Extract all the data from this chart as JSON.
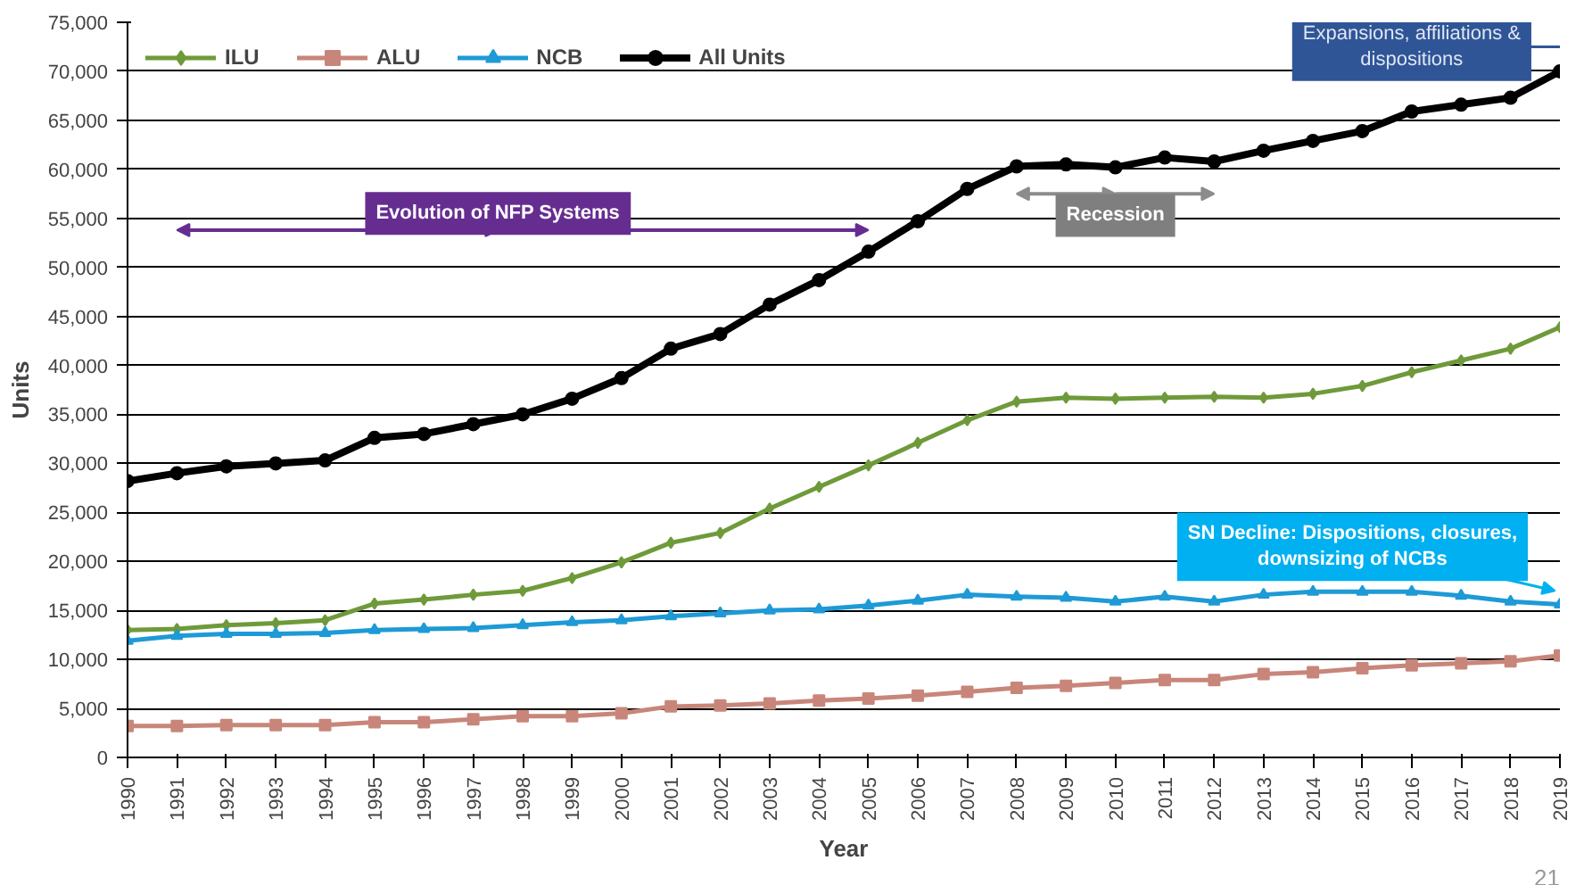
{
  "chart_data": {
    "type": "line",
    "xlabel": "Year",
    "ylabel": "Units",
    "x": [
      1990,
      1991,
      1992,
      1993,
      1994,
      1995,
      1996,
      1997,
      1998,
      1999,
      2000,
      2001,
      2002,
      2003,
      2004,
      2005,
      2006,
      2007,
      2008,
      2009,
      2010,
      2011,
      2012,
      2013,
      2014,
      2015,
      2016,
      2017,
      2018,
      2019
    ],
    "xlim": [
      1990,
      2019
    ],
    "xticks": [
      1990,
      1991,
      1992,
      1993,
      1994,
      1995,
      1996,
      1997,
      1998,
      1999,
      2000,
      2001,
      2002,
      2003,
      2004,
      2005,
      2006,
      2007,
      2008,
      2009,
      2010,
      2011,
      2012,
      2013,
      2014,
      2015,
      2016,
      2017,
      2018,
      2019
    ],
    "ylim": [
      0,
      75000
    ],
    "yticks": [
      {
        "value": 0,
        "label": "0"
      },
      {
        "value": 5000,
        "label": "5,000"
      },
      {
        "value": 10000,
        "label": "10,000"
      },
      {
        "value": 15000,
        "label": "15,000"
      },
      {
        "value": 20000,
        "label": "20,000"
      },
      {
        "value": 25000,
        "label": "25,000"
      },
      {
        "value": 30000,
        "label": "30,000"
      },
      {
        "value": 35000,
        "label": "35,000"
      },
      {
        "value": 40000,
        "label": "40,000"
      },
      {
        "value": 45000,
        "label": "45,000"
      },
      {
        "value": 50000,
        "label": "50,000"
      },
      {
        "value": 55000,
        "label": "55,000"
      },
      {
        "value": 60000,
        "label": "60,000"
      },
      {
        "value": 65000,
        "label": "65,000"
      },
      {
        "value": 70000,
        "label": "70,000"
      },
      {
        "value": 75000,
        "label": "75,000"
      }
    ],
    "grid": "y",
    "legend": "top left",
    "line_style": "solid",
    "series": [
      {
        "name": "ILU",
        "color": "#6f9a3a",
        "marker": "diamond",
        "values": [
          13000,
          13100,
          13500,
          13700,
          14000,
          15700,
          16100,
          16600,
          17000,
          18300,
          19900,
          21900,
          22900,
          25400,
          27600,
          29800,
          32100,
          34400,
          36300,
          36700,
          36600,
          36700,
          36800,
          36700,
          37100,
          37900,
          39300,
          40500,
          41700,
          43900
        ]
      },
      {
        "name": "ALU",
        "color": "#c8867a",
        "marker": "square",
        "values": [
          3200,
          3200,
          3300,
          3300,
          3300,
          3600,
          3600,
          3900,
          4200,
          4200,
          4500,
          5200,
          5300,
          5500,
          5800,
          6000,
          6300,
          6700,
          7100,
          7300,
          7600,
          7900,
          7900,
          8500,
          8700,
          9100,
          9400,
          9600,
          9800,
          10400
        ]
      },
      {
        "name": "NCB",
        "color": "#1e9ad6",
        "marker": "triangle",
        "values": [
          11900,
          12400,
          12600,
          12600,
          12700,
          13000,
          13100,
          13200,
          13500,
          13800,
          14000,
          14400,
          14700,
          15000,
          15100,
          15500,
          16000,
          16600,
          16400,
          16300,
          15900,
          16400,
          15900,
          16600,
          16900,
          16900,
          16900,
          16500,
          15900,
          15600
        ]
      },
      {
        "name": "All Units",
        "color": "#000000",
        "marker": "circle",
        "values": [
          28200,
          29000,
          29700,
          30000,
          30300,
          32600,
          33000,
          34000,
          35000,
          36600,
          38700,
          41700,
          43200,
          46200,
          48700,
          51600,
          54700,
          58000,
          60300,
          60500,
          60200,
          61200,
          60800,
          61900,
          62900,
          63900,
          65900,
          66600,
          67300,
          70000
        ]
      }
    ],
    "annotations": [
      "Evolution of NFP Systems",
      "Recession",
      "Expansions, affiliations & dispositions",
      "SN Decline: Dispositions, closures, downsizing of NCBs",
      "21"
    ]
  }
}
